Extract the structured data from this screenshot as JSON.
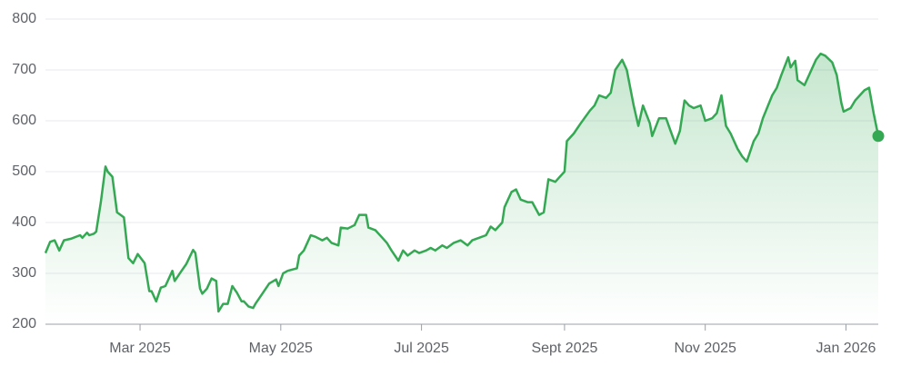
{
  "chart_data": {
    "type": "line",
    "x": [
      18,
      20,
      22,
      24,
      26,
      29,
      33,
      34,
      36,
      37,
      39,
      40,
      42,
      44,
      45,
      47,
      49,
      52,
      54,
      56,
      58,
      61,
      63,
      64,
      66,
      68,
      70,
      73,
      74,
      77,
      79,
      82,
      83,
      85,
      86,
      88,
      90,
      92,
      93,
      95,
      97,
      99,
      101,
      103,
      104,
      106,
      108,
      109,
      112,
      115,
      118,
      119,
      121,
      123,
      127,
      128,
      130,
      133,
      135,
      138,
      140,
      142,
      145,
      146,
      149,
      152,
      154,
      157,
      158,
      161,
      164,
      166,
      168,
      171,
      173,
      175,
      178,
      180,
      183,
      185,
      187,
      190,
      192,
      195,
      198,
      201,
      203,
      206,
      209,
      211,
      213,
      216,
      217,
      220,
      222,
      224,
      227,
      229,
      232,
      234,
      236,
      239,
      241,
      243,
      244,
      247,
      250,
      254,
      256,
      258,
      261,
      263,
      265,
      268,
      270,
      273,
      275,
      277,
      280,
      281,
      284,
      287,
      289,
      291,
      293,
      295,
      297,
      299,
      302,
      304,
      307,
      309,
      311,
      313,
      315,
      318,
      320,
      322,
      325,
      327,
      329,
      333,
      335,
      337,
      340,
      341,
      343,
      344,
      347,
      349,
      352,
      354,
      356,
      359,
      361,
      363,
      364,
      367,
      369,
      371,
      373,
      375,
      377,
      379
    ],
    "values": [
      340,
      362,
      365,
      345,
      365,
      368,
      375,
      370,
      380,
      375,
      378,
      382,
      440,
      510,
      500,
      490,
      420,
      410,
      330,
      320,
      338,
      320,
      265,
      265,
      245,
      272,
      275,
      305,
      285,
      305,
      318,
      346,
      340,
      270,
      260,
      270,
      290,
      285,
      225,
      240,
      240,
      275,
      262,
      245,
      245,
      235,
      232,
      240,
      260,
      280,
      288,
      275,
      300,
      305,
      310,
      335,
      345,
      375,
      372,
      365,
      370,
      360,
      355,
      390,
      388,
      395,
      415,
      415,
      390,
      385,
      370,
      360,
      345,
      325,
      345,
      335,
      345,
      340,
      345,
      350,
      345,
      355,
      350,
      360,
      365,
      355,
      365,
      370,
      375,
      392,
      385,
      400,
      430,
      460,
      465,
      445,
      440,
      440,
      415,
      420,
      485,
      480,
      490,
      500,
      560,
      575,
      595,
      620,
      630,
      650,
      645,
      655,
      700,
      720,
      700,
      630,
      590,
      630,
      595,
      570,
      605,
      605,
      580,
      555,
      580,
      640,
      630,
      625,
      630,
      600,
      605,
      615,
      650,
      590,
      575,
      545,
      530,
      520,
      560,
      575,
      605,
      650,
      665,
      690,
      725,
      705,
      718,
      680,
      670,
      690,
      720,
      732,
      728,
      715,
      690,
      635,
      618,
      625,
      640,
      650,
      660,
      665,
      615,
      570
    ],
    "color": "#34a853",
    "xlim": [
      18,
      379
    ],
    "xticks": [
      {
        "value": 59,
        "label": "Mar 2025"
      },
      {
        "value": 120,
        "label": "May 2025"
      },
      {
        "value": 181,
        "label": "Jul 2025"
      },
      {
        "value": 243,
        "label": "Sept 2025"
      },
      {
        "value": 304,
        "label": "Nov 2025"
      },
      {
        "value": 365,
        "label": "Jan 2026"
      }
    ],
    "ylim": [
      200,
      800
    ],
    "yticks": [
      200,
      300,
      400,
      500,
      600,
      700,
      800
    ],
    "grid": true
  }
}
